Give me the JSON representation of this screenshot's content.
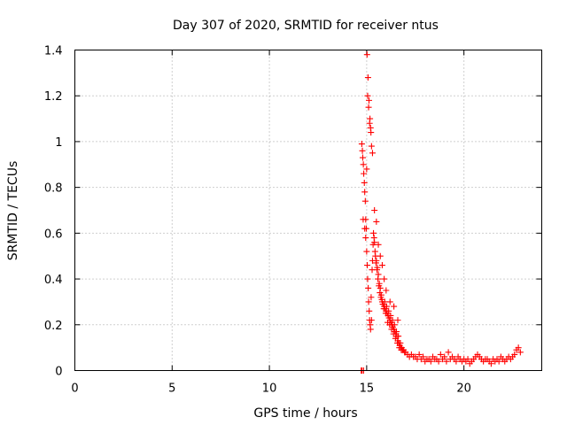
{
  "chart_data": {
    "type": "scatter",
    "title": "Day 307 of 2020, SRMTID for receiver ntus",
    "xlabel": "GPS time / hours",
    "ylabel": "SRMTID / TECUs",
    "xlim": [
      0,
      24
    ],
    "ylim": [
      0,
      1.4
    ],
    "grid": true,
    "marker": "+",
    "color": "#ff0000",
    "xticks": [
      0,
      5,
      10,
      15,
      20
    ],
    "xtick_labels": [
      "0",
      "5",
      "10",
      "15",
      "20"
    ],
    "yticks": [
      0,
      0.2,
      0.4,
      0.6,
      0.8,
      1.0,
      1.2,
      1.4
    ],
    "ytick_labels": [
      "0",
      "0.2",
      "0.4",
      "0.6",
      "0.8",
      "1",
      "1.2",
      "1.4"
    ],
    "series": [
      {
        "name": "SRMTID",
        "x": [
          14.75,
          14.8,
          14.85,
          14.9,
          14.95,
          15.0,
          15.05,
          15.1,
          15.15,
          15.2,
          15.25,
          15.3,
          15.35,
          15.4,
          15.45,
          15.5,
          15.55,
          15.6,
          15.65,
          15.7,
          15.75,
          15.8,
          15.85,
          15.9,
          15.95,
          16.0,
          16.05,
          16.1,
          16.15,
          16.2,
          16.25,
          16.3,
          16.35,
          16.4,
          16.45,
          16.5,
          16.55,
          16.6,
          16.65,
          16.7,
          16.75,
          16.8,
          16.85,
          16.9,
          16.95,
          17.0,
          17.1,
          17.2,
          17.3,
          17.4,
          17.5,
          17.6,
          17.7,
          17.8,
          17.9,
          18.0,
          18.1,
          18.2,
          18.3,
          18.4,
          18.5,
          18.6,
          18.7,
          18.8,
          18.9,
          19.0,
          19.1,
          19.2,
          19.3,
          19.4,
          19.5,
          19.6,
          19.7,
          19.8,
          19.9,
          20.0,
          20.1,
          20.2,
          20.3,
          20.4,
          20.5,
          20.6,
          20.7,
          20.8,
          20.9,
          21.0,
          21.1,
          21.2,
          21.3,
          21.4,
          21.5,
          21.6,
          21.7,
          21.8,
          21.9,
          22.0,
          22.1,
          22.2,
          22.3,
          22.4,
          22.5,
          22.6,
          22.7,
          22.8,
          22.9,
          14.78,
          14.83,
          14.88,
          14.93,
          14.98,
          15.03,
          15.08,
          15.13,
          15.18,
          15.23,
          15.28,
          15.33,
          15.38,
          15.43,
          15.48,
          15.53,
          15.58,
          15.63,
          15.68,
          15.73,
          15.78,
          15.83,
          15.88,
          15.93,
          15.98,
          16.03,
          16.08,
          16.13,
          16.18,
          16.23,
          16.28,
          16.33,
          16.38,
          16.43,
          16.48,
          16.53,
          16.58,
          16.63,
          16.68,
          16.73,
          16.78,
          15.02,
          15.07,
          15.12,
          15.17,
          15.22,
          15.1,
          15.15,
          15.2,
          15.05,
          15.25,
          15.3,
          14.82,
          14.9,
          14.95,
          15.0,
          15.4,
          15.5,
          15.6,
          15.7,
          15.8,
          15.9,
          16.0,
          16.2,
          16.4,
          16.6,
          14.72,
          14.76,
          14.84
        ],
        "y": [
          0.99,
          0.93,
          0.86,
          0.78,
          0.66,
          0.52,
          0.4,
          0.3,
          0.22,
          0.18,
          0.22,
          0.48,
          0.6,
          0.56,
          0.5,
          0.48,
          0.45,
          0.42,
          0.38,
          0.36,
          0.33,
          0.3,
          0.29,
          0.28,
          0.27,
          0.26,
          0.25,
          0.24,
          0.23,
          0.22,
          0.21,
          0.2,
          0.19,
          0.18,
          0.17,
          0.16,
          0.15,
          0.13,
          0.12,
          0.11,
          0.1,
          0.1,
          0.09,
          0.09,
          0.08,
          0.08,
          0.07,
          0.06,
          0.07,
          0.06,
          0.06,
          0.05,
          0.07,
          0.05,
          0.06,
          0.04,
          0.05,
          0.05,
          0.04,
          0.06,
          0.05,
          0.05,
          0.04,
          0.07,
          0.05,
          0.06,
          0.04,
          0.08,
          0.05,
          0.06,
          0.05,
          0.04,
          0.06,
          0.05,
          0.04,
          0.05,
          0.04,
          0.05,
          0.03,
          0.04,
          0.05,
          0.06,
          0.07,
          0.06,
          0.05,
          0.04,
          0.05,
          0.05,
          0.04,
          0.03,
          0.05,
          0.04,
          0.05,
          0.04,
          0.06,
          0.05,
          0.04,
          0.05,
          0.06,
          0.05,
          0.06,
          0.07,
          0.09,
          0.1,
          0.08,
          0.96,
          0.9,
          0.82,
          0.74,
          0.62,
          0.46,
          0.36,
          0.26,
          0.2,
          0.32,
          0.44,
          0.55,
          0.58,
          0.52,
          0.47,
          0.44,
          0.4,
          0.37,
          0.34,
          0.32,
          0.31,
          0.29,
          0.27,
          0.3,
          0.25,
          0.28,
          0.21,
          0.26,
          0.2,
          0.24,
          0.18,
          0.22,
          0.16,
          0.2,
          0.14,
          0.17,
          0.12,
          0.15,
          0.1,
          0.12,
          0.09,
          1.38,
          1.28,
          1.18,
          1.1,
          1.04,
          1.15,
          1.08,
          1.06,
          1.2,
          0.98,
          0.95,
          0.66,
          0.62,
          0.58,
          0.88,
          0.7,
          0.65,
          0.55,
          0.5,
          0.46,
          0.4,
          0.35,
          0.3,
          0.28,
          0.22,
          0.0,
          0.0,
          0.0
        ]
      }
    ]
  }
}
